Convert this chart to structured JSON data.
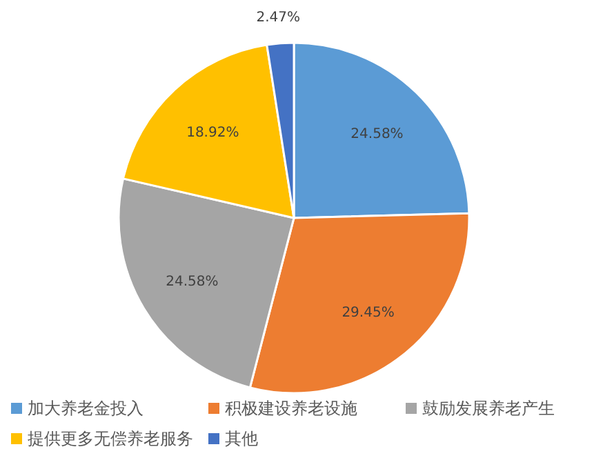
{
  "chart_data": {
    "type": "pie",
    "categories": [
      "加大养老金投入",
      "积极建设养老设施",
      "鼓励发展养老产生",
      "提供更多无偿养老服务",
      "其他"
    ],
    "values": [
      24.58,
      29.45,
      24.58,
      18.92,
      2.47
    ],
    "colors": [
      "#5b9bd5",
      "#ed7d31",
      "#a5a5a5",
      "#ffc000",
      "#4472c4"
    ],
    "value_labels": [
      "24.58%",
      "29.45%",
      "24.58%",
      "18.92%",
      "2.47%"
    ],
    "legend": "bottom"
  }
}
